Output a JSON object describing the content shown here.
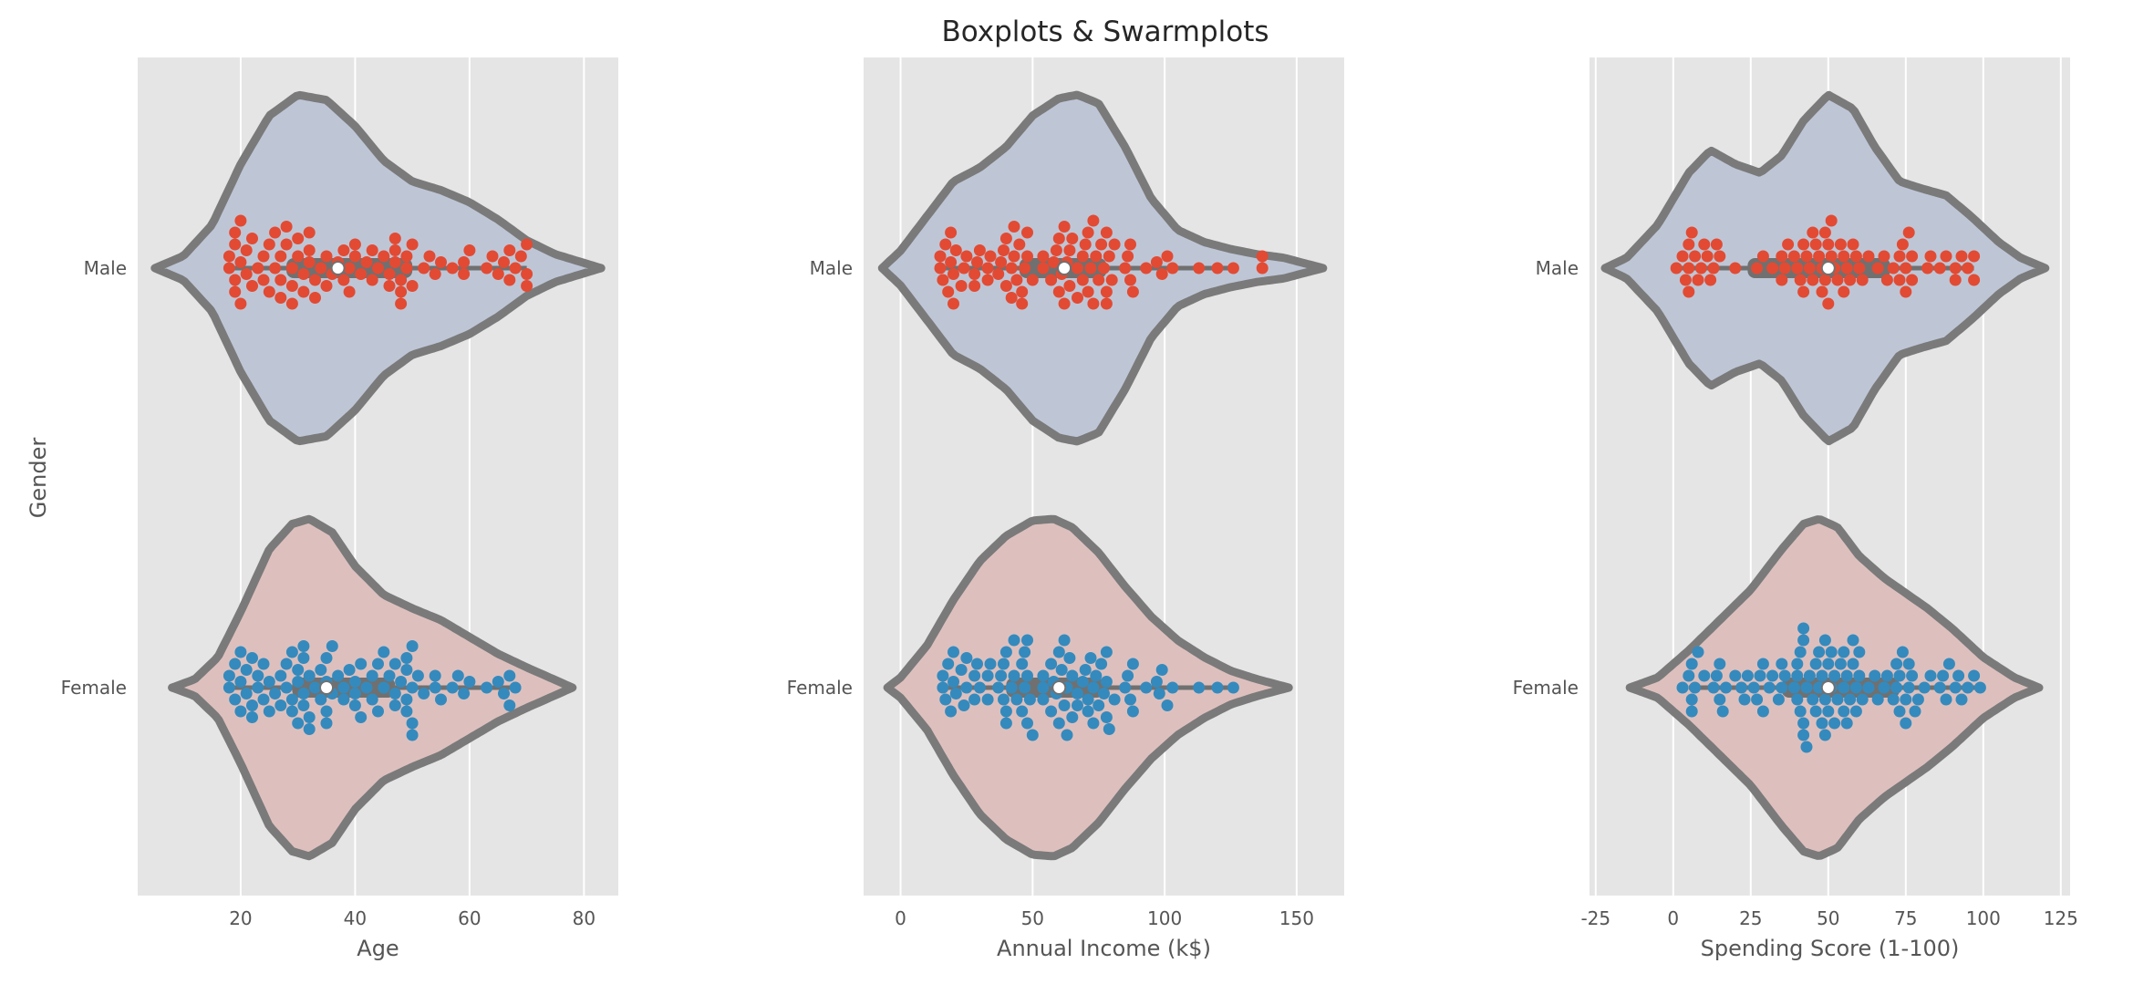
{
  "chart_data": {
    "type": "violin+swarm",
    "title": "Boxplots & Swarmplots",
    "ylabel": "Gender",
    "categories": [
      "Male",
      "Female"
    ],
    "colors": {
      "male_violin": "#bec6d6",
      "female_violin": "#ddc0be",
      "male_points": "#e24a33",
      "female_points": "#348abd",
      "violin_edge": "#7a7a7a",
      "panel_bg": "#e5e5e5"
    },
    "grid": true,
    "panels": [
      {
        "xlabel": "Age",
        "xlim": [
          2,
          86
        ],
        "xticks": [
          20,
          40,
          60,
          80
        ],
        "violins": {
          "Male": {
            "range": [
              5,
              83
            ],
            "density": [
              [
                5,
                0
              ],
              [
                10,
                0.07
              ],
              [
                15,
                0.25
              ],
              [
                20,
                0.6
              ],
              [
                25,
                0.88
              ],
              [
                30,
                1
              ],
              [
                35,
                0.97
              ],
              [
                40,
                0.82
              ],
              [
                45,
                0.62
              ],
              [
                50,
                0.5
              ],
              [
                55,
                0.45
              ],
              [
                60,
                0.38
              ],
              [
                65,
                0.28
              ],
              [
                70,
                0.16
              ],
              [
                75,
                0.08
              ],
              [
                80,
                0.03
              ],
              [
                83,
                0
              ]
            ],
            "q1": 28,
            "median": 37,
            "q3": 50,
            "whisker": [
              18,
              70
            ]
          },
          "Female": {
            "range": [
              8,
              78
            ],
            "density": [
              [
                8,
                0
              ],
              [
                12,
                0.05
              ],
              [
                16,
                0.18
              ],
              [
                20,
                0.45
              ],
              [
                25,
                0.82
              ],
              [
                29,
                0.97
              ],
              [
                32,
                1
              ],
              [
                36,
                0.92
              ],
              [
                40,
                0.72
              ],
              [
                45,
                0.55
              ],
              [
                50,
                0.47
              ],
              [
                55,
                0.4
              ],
              [
                60,
                0.3
              ],
              [
                65,
                0.2
              ],
              [
                70,
                0.12
              ],
              [
                74,
                0.06
              ],
              [
                78,
                0
              ]
            ],
            "q1": 29,
            "median": 35,
            "q3": 47,
            "whisker": [
              18,
              68
            ]
          }
        },
        "points": {
          "Male": [
            18,
            18,
            19,
            19,
            19,
            19,
            20,
            20,
            20,
            21,
            21,
            22,
            22,
            23,
            24,
            24,
            25,
            25,
            26,
            26,
            27,
            27,
            27,
            28,
            28,
            29,
            29,
            29,
            30,
            30,
            31,
            31,
            32,
            32,
            32,
            33,
            33,
            34,
            35,
            35,
            36,
            37,
            38,
            38,
            39,
            39,
            40,
            40,
            41,
            42,
            43,
            43,
            44,
            45,
            46,
            46,
            47,
            47,
            47,
            48,
            48,
            48,
            49,
            49,
            50,
            50,
            52,
            53,
            54,
            55,
            57,
            59,
            59,
            60,
            63,
            64,
            65,
            66,
            67,
            67,
            68,
            69,
            70,
            70,
            70
          ],
          "Female": [
            18,
            18,
            19,
            19,
            20,
            20,
            20,
            21,
            21,
            22,
            22,
            22,
            23,
            23,
            24,
            24,
            25,
            25,
            26,
            27,
            27,
            28,
            28,
            29,
            29,
            29,
            30,
            30,
            30,
            31,
            31,
            31,
            31,
            32,
            32,
            32,
            33,
            34,
            34,
            35,
            35,
            35,
            35,
            36,
            36,
            37,
            38,
            38,
            39,
            40,
            40,
            40,
            41,
            41,
            42,
            43,
            43,
            44,
            44,
            45,
            45,
            46,
            47,
            47,
            47,
            48,
            49,
            49,
            49,
            49,
            50,
            50,
            50,
            50,
            51,
            52,
            54,
            54,
            55,
            57,
            58,
            59,
            60,
            63,
            65,
            66,
            67,
            67,
            68
          ]
        }
      },
      {
        "xlabel": "Annual Income (k$)",
        "xlim": [
          -14,
          168
        ],
        "xticks": [
          0,
          50,
          100,
          150
        ],
        "violins": {
          "Male": {
            "range": [
              -7,
              160
            ],
            "density": [
              [
                -7,
                0
              ],
              [
                0,
                0.1
              ],
              [
                10,
                0.3
              ],
              [
                20,
                0.5
              ],
              [
                30,
                0.58
              ],
              [
                40,
                0.7
              ],
              [
                50,
                0.88
              ],
              [
                60,
                0.98
              ],
              [
                67,
                1
              ],
              [
                75,
                0.95
              ],
              [
                85,
                0.7
              ],
              [
                95,
                0.4
              ],
              [
                105,
                0.22
              ],
              [
                115,
                0.15
              ],
              [
                125,
                0.11
              ],
              [
                135,
                0.08
              ],
              [
                145,
                0.06
              ],
              [
                155,
                0.02
              ],
              [
                160,
                0
              ]
            ],
            "q1": 45,
            "median": 62,
            "q3": 78,
            "whisker": [
              15,
              126
            ]
          },
          "Female": {
            "range": [
              -5,
              147
            ],
            "density": [
              [
                -5,
                0
              ],
              [
                0,
                0.06
              ],
              [
                10,
                0.25
              ],
              [
                20,
                0.52
              ],
              [
                30,
                0.75
              ],
              [
                40,
                0.9
              ],
              [
                50,
                0.99
              ],
              [
                58,
                1
              ],
              [
                65,
                0.95
              ],
              [
                75,
                0.8
              ],
              [
                85,
                0.6
              ],
              [
                95,
                0.42
              ],
              [
                105,
                0.28
              ],
              [
                115,
                0.18
              ],
              [
                125,
                0.1
              ],
              [
                135,
                0.05
              ],
              [
                147,
                0
              ]
            ],
            "q1": 40,
            "median": 60,
            "q3": 77,
            "whisker": [
              16,
              126
            ]
          }
        },
        "points": {
          "Male": [
            15,
            15,
            16,
            17,
            18,
            19,
            19,
            20,
            20,
            21,
            23,
            24,
            25,
            28,
            28,
            29,
            30,
            33,
            33,
            34,
            37,
            38,
            39,
            40,
            40,
            42,
            42,
            43,
            43,
            44,
            45,
            46,
            46,
            47,
            48,
            48,
            50,
            54,
            54,
            57,
            58,
            59,
            60,
            60,
            61,
            62,
            62,
            63,
            64,
            64,
            65,
            67,
            67,
            69,
            69,
            70,
            71,
            71,
            72,
            73,
            73,
            74,
            75,
            76,
            77,
            78,
            78,
            78,
            79,
            80,
            81,
            85,
            86,
            87,
            87,
            88,
            93,
            97,
            99,
            101,
            103,
            113,
            120,
            126,
            137,
            137
          ],
          "Female": [
            16,
            16,
            17,
            18,
            19,
            20,
            20,
            21,
            23,
            24,
            25,
            25,
            28,
            28,
            29,
            30,
            33,
            33,
            34,
            37,
            38,
            39,
            39,
            40,
            40,
            40,
            42,
            43,
            43,
            44,
            46,
            46,
            47,
            47,
            48,
            48,
            48,
            49,
            50,
            54,
            54,
            54,
            57,
            57,
            58,
            59,
            60,
            60,
            61,
            62,
            62,
            63,
            63,
            64,
            65,
            65,
            67,
            67,
            69,
            70,
            71,
            71,
            72,
            73,
            73,
            74,
            75,
            76,
            77,
            78,
            78,
            78,
            79,
            81,
            85,
            86,
            87,
            88,
            88,
            93,
            97,
            98,
            99,
            101,
            103,
            113,
            120,
            126
          ]
        }
      },
      {
        "xlabel": "Spending Score (1-100)",
        "xlim": [
          -27,
          128
        ],
        "xticks": [
          -25,
          0,
          25,
          50,
          75,
          100,
          125
        ],
        "violins": {
          "Male": {
            "range": [
              -22,
              120
            ],
            "density": [
              [
                -22,
                0
              ],
              [
                -15,
                0.06
              ],
              [
                -5,
                0.25
              ],
              [
                5,
                0.55
              ],
              [
                12,
                0.68
              ],
              [
                20,
                0.6
              ],
              [
                28,
                0.55
              ],
              [
                35,
                0.65
              ],
              [
                42,
                0.85
              ],
              [
                50,
                1
              ],
              [
                58,
                0.92
              ],
              [
                65,
                0.7
              ],
              [
                73,
                0.5
              ],
              [
                80,
                0.46
              ],
              [
                88,
                0.42
              ],
              [
                96,
                0.3
              ],
              [
                105,
                0.15
              ],
              [
                112,
                0.06
              ],
              [
                120,
                0
              ]
            ],
            "q1": 24,
            "median": 50,
            "q3": 70,
            "whisker": [
              1,
              97
            ]
          },
          "Female": {
            "range": [
              -14,
              118
            ],
            "density": [
              [
                -14,
                0
              ],
              [
                -5,
                0.06
              ],
              [
                5,
                0.22
              ],
              [
                15,
                0.4
              ],
              [
                25,
                0.58
              ],
              [
                35,
                0.82
              ],
              [
                42,
                0.97
              ],
              [
                47,
                1
              ],
              [
                53,
                0.95
              ],
              [
                60,
                0.78
              ],
              [
                68,
                0.65
              ],
              [
                75,
                0.56
              ],
              [
                82,
                0.47
              ],
              [
                90,
                0.35
              ],
              [
                100,
                0.18
              ],
              [
                110,
                0.06
              ],
              [
                118,
                0
              ]
            ],
            "q1": 35,
            "median": 50,
            "q3": 73,
            "whisker": [
              5,
              99
            ]
          }
        },
        "points": {
          "Male": [
            1,
            3,
            4,
            5,
            5,
            5,
            6,
            7,
            8,
            9,
            10,
            11,
            12,
            13,
            14,
            15,
            20,
            27,
            29,
            32,
            35,
            35,
            36,
            37,
            39,
            40,
            41,
            42,
            42,
            43,
            44,
            45,
            45,
            46,
            47,
            48,
            48,
            49,
            49,
            50,
            50,
            51,
            51,
            52,
            53,
            54,
            55,
            55,
            56,
            57,
            58,
            59,
            60,
            61,
            63,
            66,
            68,
            69,
            71,
            73,
            73,
            74,
            75,
            75,
            76,
            77,
            77,
            82,
            83,
            86,
            88,
            91,
            91,
            93,
            95,
            97,
            97
          ],
          "Female": [
            3,
            5,
            6,
            6,
            6,
            7,
            8,
            10,
            13,
            14,
            15,
            15,
            16,
            17,
            20,
            22,
            23,
            24,
            26,
            27,
            28,
            29,
            29,
            31,
            32,
            34,
            35,
            35,
            36,
            39,
            40,
            40,
            40,
            41,
            41,
            42,
            42,
            42,
            42,
            43,
            43,
            44,
            45,
            46,
            46,
            47,
            47,
            48,
            48,
            49,
            49,
            49,
            50,
            50,
            51,
            51,
            52,
            52,
            53,
            54,
            55,
            55,
            55,
            56,
            56,
            57,
            58,
            58,
            59,
            59,
            60,
            60,
            61,
            63,
            65,
            66,
            68,
            69,
            71,
            72,
            72,
            73,
            73,
            74,
            75,
            75,
            76,
            76,
            77,
            78,
            79,
            81,
            83,
            86,
            87,
            88,
            89,
            91,
            92,
            93,
            95,
            97,
            99
          ]
        }
      }
    ]
  }
}
